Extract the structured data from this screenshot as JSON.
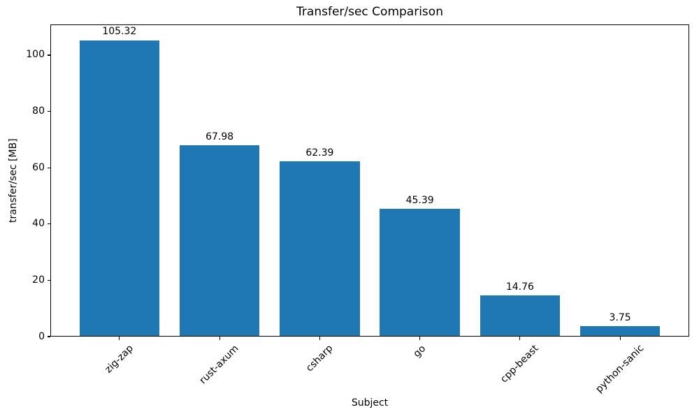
{
  "chart_data": {
    "type": "bar",
    "title": "Transfer/sec Comparison",
    "xlabel": "Subject",
    "ylabel": "transfer/sec [MB]",
    "categories": [
      "zig-zap",
      "rust-axum",
      "csharp",
      "go",
      "cpp-beast",
      "python-sanic"
    ],
    "values": [
      105.32,
      67.98,
      62.39,
      45.39,
      14.76,
      3.75
    ],
    "value_labels": [
      "105.32",
      "67.98",
      "62.39",
      "45.39",
      "14.76",
      "3.75"
    ],
    "yticks": [
      0,
      20,
      40,
      60,
      80,
      100
    ],
    "ylim": [
      0,
      110.9
    ],
    "xlim": [
      -0.69,
      5.69
    ],
    "bar_width_ratio": 0.8,
    "bar_color": "#1f77b4",
    "axis_color": "#000000",
    "grid": false,
    "legend_position": "none",
    "x_tick_rotation_deg": 45
  }
}
